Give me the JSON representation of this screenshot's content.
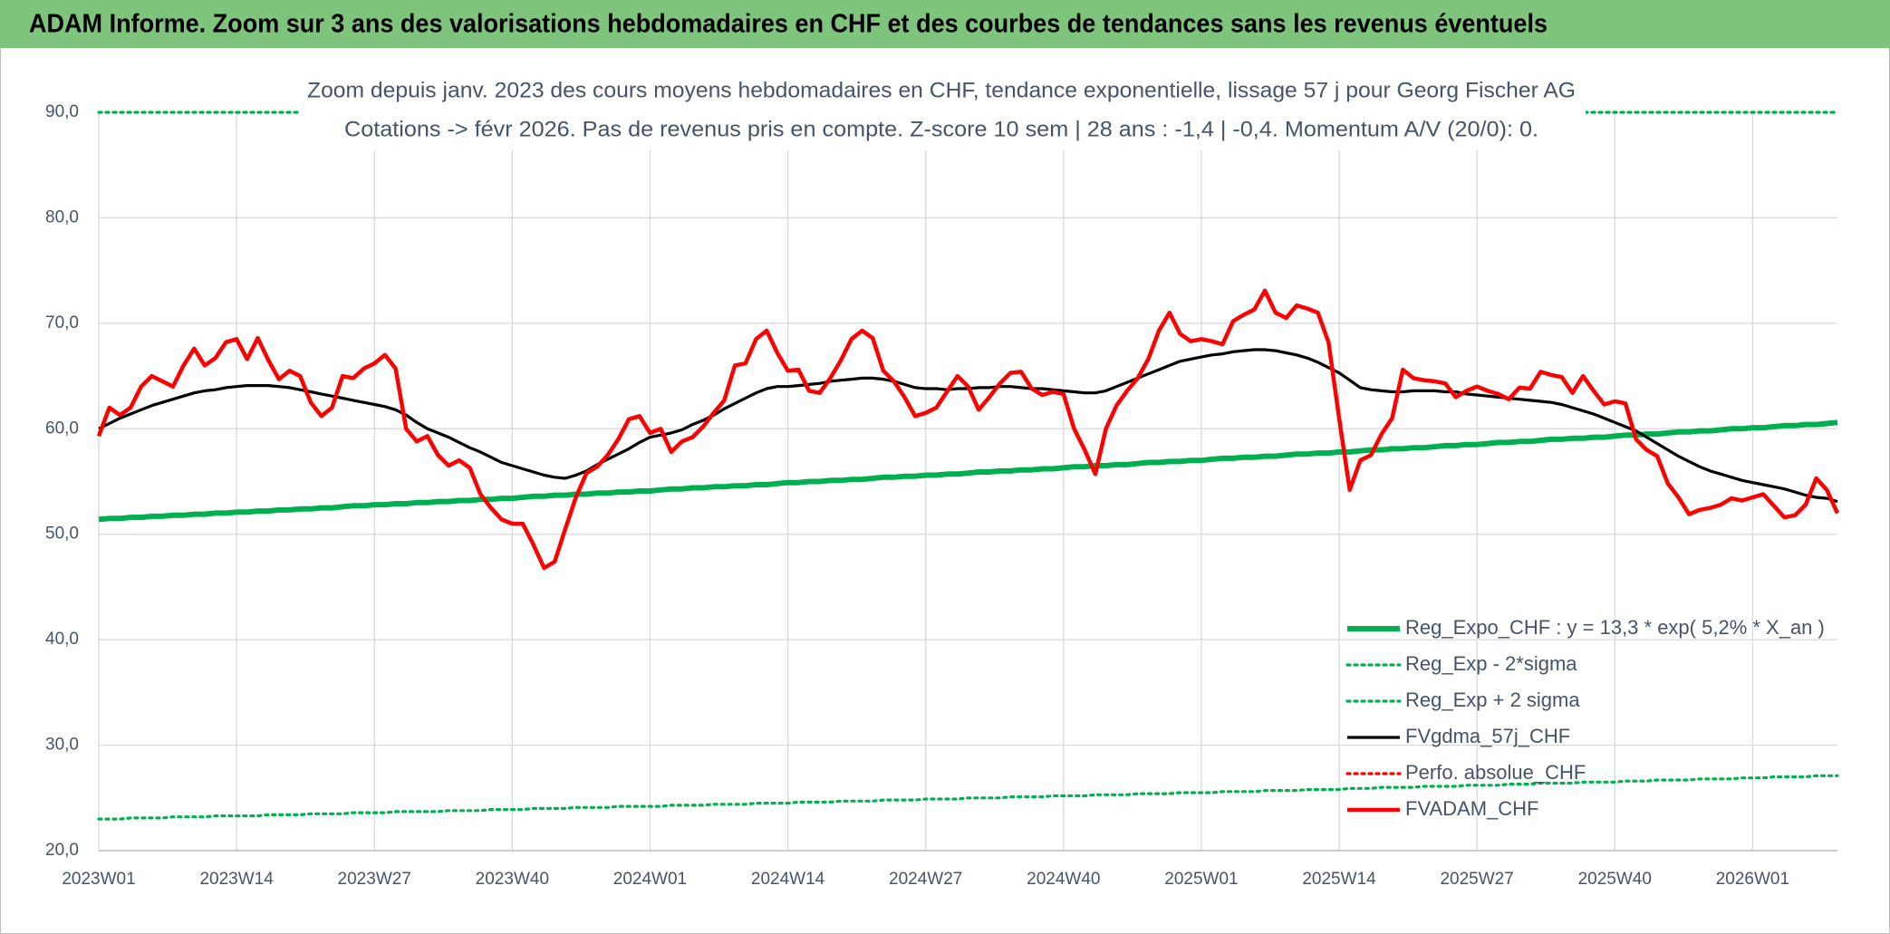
{
  "header": {
    "title": "ADAM Informe. Zoom sur 3 ans des valorisations hebdomadaires en CHF et des courbes de tendances sans les revenus éventuels"
  },
  "chart_data": {
    "type": "line",
    "title": "Zoom depuis janv. 2023 des cours moyens hebdomadaires en CHF, tendance exponentielle, lissage 57 j pour Georg Fischer AG",
    "subtitle": "Cotations -> févr 2026. Pas de revenus pris en compte. Z-score 10 sem | 28 ans : -1,4 | -0,4. Momentum A/V (20/0): 0.",
    "categories": [
      "2023W01",
      null,
      null,
      null,
      null,
      null,
      null,
      null,
      null,
      null,
      null,
      null,
      null,
      "2023W14",
      null,
      null,
      null,
      null,
      null,
      null,
      null,
      null,
      null,
      null,
      null,
      null,
      "2023W27",
      null,
      null,
      null,
      null,
      null,
      null,
      null,
      null,
      null,
      null,
      null,
      null,
      "2023W40",
      null,
      null,
      null,
      null,
      null,
      null,
      null,
      null,
      null,
      null,
      null,
      null,
      "2024W01",
      null,
      null,
      null,
      null,
      null,
      null,
      null,
      null,
      null,
      null,
      null,
      null,
      "2024W14",
      null,
      null,
      null,
      null,
      null,
      null,
      null,
      null,
      null,
      null,
      null,
      null,
      "2024W27",
      null,
      null,
      null,
      null,
      null,
      null,
      null,
      null,
      null,
      null,
      null,
      null,
      "2024W40",
      null,
      null,
      null,
      null,
      null,
      null,
      null,
      null,
      null,
      null,
      null,
      null,
      "2025W01",
      null,
      null,
      null,
      null,
      null,
      null,
      null,
      null,
      null,
      null,
      null,
      null,
      "2025W14",
      null,
      null,
      null,
      null,
      null,
      null,
      null,
      null,
      null,
      null,
      null,
      null,
      "2025W27",
      null,
      null,
      null,
      null,
      null,
      null,
      null,
      null,
      null,
      null,
      null,
      null,
      "2025W40",
      null,
      null,
      null,
      null,
      null,
      null,
      null,
      null,
      null,
      null,
      null,
      null,
      "2026W01",
      null,
      null,
      null,
      null,
      null,
      null,
      null,
      null
    ],
    "ylim": [
      20,
      90
    ],
    "yticks": [
      {
        "value": 20,
        "label": "20,0"
      },
      {
        "value": 30,
        "label": "30,0"
      },
      {
        "value": 40,
        "label": "40,0"
      },
      {
        "value": 50,
        "label": "50,0"
      },
      {
        "value": 60,
        "label": "60,0"
      },
      {
        "value": 70,
        "label": "70,0"
      },
      {
        "value": 80,
        "label": "80,0"
      },
      {
        "value": 90,
        "label": "90,0"
      }
    ],
    "grid": true,
    "legend": "bottom-right",
    "series": [
      {
        "name": "Reg_Expo_CHF : y = 13,3 * exp( 5,2% *  X_an )",
        "color": "#00b050",
        "style": "thick",
        "values": [
          51.4,
          51.5,
          51.5,
          51.6,
          51.6,
          51.7,
          51.7,
          51.8,
          51.8,
          51.9,
          51.9,
          52.0,
          52.0,
          52.1,
          52.1,
          52.2,
          52.2,
          52.3,
          52.3,
          52.4,
          52.4,
          52.5,
          52.5,
          52.6,
          52.7,
          52.7,
          52.8,
          52.8,
          52.9,
          52.9,
          53.0,
          53.0,
          53.1,
          53.1,
          53.2,
          53.2,
          53.3,
          53.3,
          53.4,
          53.4,
          53.5,
          53.6,
          53.6,
          53.7,
          53.7,
          53.8,
          53.8,
          53.9,
          53.9,
          54.0,
          54.0,
          54.1,
          54.1,
          54.2,
          54.3,
          54.3,
          54.4,
          54.4,
          54.5,
          54.5,
          54.6,
          54.6,
          54.7,
          54.7,
          54.8,
          54.9,
          54.9,
          55.0,
          55.0,
          55.1,
          55.1,
          55.2,
          55.2,
          55.3,
          55.4,
          55.4,
          55.5,
          55.5,
          55.6,
          55.6,
          55.7,
          55.7,
          55.8,
          55.9,
          55.9,
          56.0,
          56.0,
          56.1,
          56.1,
          56.2,
          56.2,
          56.3,
          56.4,
          56.4,
          56.5,
          56.5,
          56.6,
          56.6,
          56.7,
          56.8,
          56.8,
          56.9,
          56.9,
          57.0,
          57.0,
          57.1,
          57.2,
          57.2,
          57.3,
          57.3,
          57.4,
          57.4,
          57.5,
          57.6,
          57.6,
          57.7,
          57.7,
          57.8,
          57.8,
          57.9,
          58.0,
          58.0,
          58.1,
          58.1,
          58.2,
          58.2,
          58.3,
          58.4,
          58.4,
          58.5,
          58.5,
          58.6,
          58.7,
          58.7,
          58.8,
          58.8,
          58.9,
          59.0,
          59.0,
          59.1,
          59.1,
          59.2,
          59.2,
          59.3,
          59.4,
          59.4,
          59.5,
          59.5,
          59.6,
          59.7,
          59.7,
          59.8,
          59.8,
          59.9,
          60.0,
          60.0,
          60.1,
          60.1,
          60.2,
          60.3,
          60.3,
          60.4,
          60.4,
          60.5,
          60.6
        ]
      },
      {
        "name": "Reg_Exp - 2*sigma",
        "color": "#00b050",
        "style": "dotted",
        "values": [
          23.0,
          23.0,
          23.0,
          23.1,
          23.1,
          23.1,
          23.1,
          23.2,
          23.2,
          23.2,
          23.2,
          23.3,
          23.3,
          23.3,
          23.3,
          23.3,
          23.4,
          23.4,
          23.4,
          23.4,
          23.5,
          23.5,
          23.5,
          23.5,
          23.6,
          23.6,
          23.6,
          23.6,
          23.7,
          23.7,
          23.7,
          23.7,
          23.7,
          23.8,
          23.8,
          23.8,
          23.8,
          23.9,
          23.9,
          23.9,
          23.9,
          24.0,
          24.0,
          24.0,
          24.0,
          24.1,
          24.1,
          24.1,
          24.1,
          24.2,
          24.2,
          24.2,
          24.2,
          24.2,
          24.3,
          24.3,
          24.3,
          24.3,
          24.4,
          24.4,
          24.4,
          24.4,
          24.5,
          24.5,
          24.5,
          24.5,
          24.6,
          24.6,
          24.6,
          24.6,
          24.7,
          24.7,
          24.7,
          24.7,
          24.8,
          24.8,
          24.8,
          24.8,
          24.9,
          24.9,
          24.9,
          24.9,
          25.0,
          25.0,
          25.0,
          25.0,
          25.1,
          25.1,
          25.1,
          25.1,
          25.2,
          25.2,
          25.2,
          25.2,
          25.3,
          25.3,
          25.3,
          25.3,
          25.4,
          25.4,
          25.4,
          25.4,
          25.5,
          25.5,
          25.5,
          25.5,
          25.6,
          25.6,
          25.6,
          25.6,
          25.7,
          25.7,
          25.7,
          25.7,
          25.8,
          25.8,
          25.8,
          25.8,
          25.9,
          25.9,
          25.9,
          26.0,
          26.0,
          26.0,
          26.0,
          26.1,
          26.1,
          26.1,
          26.1,
          26.2,
          26.2,
          26.2,
          26.2,
          26.3,
          26.3,
          26.3,
          26.4,
          26.4,
          26.4,
          26.4,
          26.5,
          26.5,
          26.5,
          26.5,
          26.6,
          26.6,
          26.6,
          26.7,
          26.7,
          26.7,
          26.7,
          26.8,
          26.8,
          26.8,
          26.8,
          26.9,
          26.9,
          26.9,
          27.0,
          27.0,
          27.0,
          27.0,
          27.1,
          27.1,
          27.1
        ]
      },
      {
        "name": "Reg_Exp + 2 sigma",
        "color": "#00b050",
        "style": "dotted",
        "values": [
          90,
          90,
          90,
          90,
          90,
          90,
          90,
          90,
          90,
          90,
          90,
          90,
          90,
          90,
          90,
          90,
          90,
          90,
          90,
          90,
          90,
          90,
          90,
          90,
          90,
          90,
          90,
          90,
          90,
          90,
          90,
          90,
          90,
          90,
          90,
          90,
          90,
          90,
          90,
          90,
          90,
          90,
          90,
          90,
          90,
          90,
          90,
          90,
          90,
          90,
          90,
          90,
          90,
          90,
          90,
          90,
          90,
          90,
          90,
          90,
          90,
          90,
          90,
          90,
          90,
          90,
          90,
          90,
          90,
          90,
          90,
          90,
          90,
          90,
          90,
          90,
          90,
          90,
          90,
          90,
          90,
          90,
          90,
          90,
          90,
          90,
          90,
          90,
          90,
          90,
          90,
          90,
          90,
          90,
          90,
          90,
          90,
          90,
          90,
          90,
          90,
          90,
          90,
          90,
          90,
          90,
          90,
          90,
          90,
          90,
          90,
          90,
          90,
          90,
          90,
          90,
          90,
          90,
          90,
          90,
          90,
          90,
          90,
          90,
          90,
          90,
          90,
          90,
          90,
          90,
          90,
          90,
          90,
          90,
          90,
          90,
          90,
          90,
          90,
          90,
          90,
          90,
          90,
          90,
          90,
          90,
          90,
          90,
          90,
          90,
          90,
          90,
          90,
          90,
          90,
          90,
          90,
          90,
          90,
          90,
          90,
          90,
          90,
          90,
          90
        ]
      },
      {
        "name": "FVgdma_57j_CHF",
        "color": "#000000",
        "style": "solid",
        "values": [
          60.0,
          60.5,
          61.0,
          61.4,
          61.8,
          62.2,
          62.5,
          62.8,
          63.1,
          63.4,
          63.6,
          63.7,
          63.9,
          64.0,
          64.1,
          64.1,
          64.1,
          64.0,
          63.9,
          63.7,
          63.5,
          63.3,
          63.1,
          62.9,
          62.7,
          62.5,
          62.3,
          62.1,
          61.8,
          61.3,
          60.6,
          60.0,
          59.6,
          59.2,
          58.7,
          58.2,
          57.8,
          57.3,
          56.8,
          56.5,
          56.2,
          55.9,
          55.6,
          55.4,
          55.3,
          55.6,
          56.0,
          56.6,
          57.1,
          57.6,
          58.1,
          58.7,
          59.2,
          59.4,
          59.6,
          59.9,
          60.4,
          60.8,
          61.3,
          61.9,
          62.4,
          62.9,
          63.4,
          63.8,
          64.0,
          64.0,
          64.1,
          64.2,
          64.3,
          64.5,
          64.6,
          64.7,
          64.8,
          64.8,
          64.7,
          64.5,
          64.2,
          63.9,
          63.8,
          63.8,
          63.7,
          63.8,
          63.8,
          63.9,
          63.9,
          64.0,
          64.0,
          63.9,
          63.8,
          63.8,
          63.7,
          63.6,
          63.5,
          63.4,
          63.4,
          63.6,
          64.0,
          64.4,
          64.8,
          65.2,
          65.6,
          66.0,
          66.4,
          66.6,
          66.8,
          67.0,
          67.1,
          67.3,
          67.4,
          67.5,
          67.5,
          67.4,
          67.2,
          67.0,
          66.7,
          66.3,
          65.8,
          65.3,
          64.6,
          63.9,
          63.7,
          63.6,
          63.5,
          63.5,
          63.6,
          63.6,
          63.6,
          63.5,
          63.5,
          63.3,
          63.2,
          63.1,
          63.0,
          62.9,
          62.8,
          62.7,
          62.6,
          62.5,
          62.3,
          62.0,
          61.7,
          61.4,
          61.0,
          60.6,
          60.2,
          59.8,
          59.2,
          58.6,
          58.0,
          57.4,
          56.9,
          56.4,
          56.0,
          55.7,
          55.4,
          55.1,
          54.9,
          54.7,
          54.5,
          54.3,
          54.0,
          53.7,
          53.5,
          53.4,
          53.1
        ]
      },
      {
        "name": "Perfo. absolue_CHF",
        "color": "#ff0000",
        "style": "dotted",
        "values": [
          null,
          null,
          null,
          null,
          null,
          null,
          null,
          null,
          null,
          null,
          null,
          null,
          null,
          null,
          null,
          null,
          null,
          null,
          null,
          null,
          null,
          null,
          null,
          null,
          null,
          null,
          null,
          null,
          null,
          null,
          null,
          null,
          null,
          null,
          null,
          null,
          null,
          null,
          null,
          null,
          null,
          null,
          null,
          null,
          null,
          null,
          null,
          null,
          null,
          null,
          null,
          null,
          null,
          null,
          null,
          null,
          null,
          null,
          null,
          null,
          null,
          null,
          null,
          null,
          null,
          null,
          null,
          null,
          null,
          null,
          null,
          null,
          null,
          null,
          null,
          null,
          null,
          null,
          null,
          null,
          null,
          null,
          null,
          null,
          null,
          null,
          null,
          null,
          null,
          null,
          null,
          null,
          null,
          null,
          null,
          null,
          null,
          null,
          null,
          null,
          null,
          null,
          null,
          null,
          null,
          null,
          null,
          null,
          null,
          null,
          null,
          null,
          null,
          null,
          null,
          null,
          null,
          null,
          null,
          null,
          null,
          null,
          null,
          null,
          null,
          null,
          null,
          null,
          null,
          null,
          null,
          null,
          null,
          null,
          null,
          null,
          null,
          null,
          null,
          null,
          null,
          null,
          null,
          null,
          null,
          null,
          null,
          null,
          null,
          null,
          null,
          null,
          null,
          null,
          null,
          null,
          null,
          null,
          null,
          null,
          null,
          null,
          null,
          null,
          null
        ]
      },
      {
        "name": "FVADAM_CHF",
        "color": "#ff0000",
        "style": "thick-red",
        "values": [
          59.3,
          62.0,
          61.3,
          62.0,
          64.0,
          65.0,
          64.5,
          64.0,
          66.0,
          67.6,
          66.0,
          66.7,
          68.2,
          68.5,
          66.6,
          68.6,
          66.5,
          64.7,
          65.5,
          65.0,
          62.5,
          61.2,
          62.0,
          65.0,
          64.8,
          65.7,
          66.2,
          67.0,
          65.7,
          60.0,
          58.8,
          59.3,
          57.5,
          56.5,
          57.0,
          56.3,
          53.8,
          52.5,
          51.4,
          51.0,
          51.0,
          49.0,
          46.8,
          47.4,
          50.5,
          53.5,
          55.8,
          56.4,
          57.5,
          59.0,
          60.9,
          61.2,
          59.6,
          60.0,
          57.8,
          58.8,
          59.2,
          60.2,
          61.5,
          62.7,
          66.0,
          66.2,
          68.5,
          69.3,
          67.2,
          65.5,
          65.6,
          63.6,
          63.4,
          64.8,
          66.5,
          68.5,
          69.3,
          68.6,
          65.5,
          64.5,
          63.0,
          61.2,
          61.5,
          62.0,
          63.5,
          65.0,
          64.0,
          61.8,
          63.0,
          64.3,
          65.3,
          65.4,
          63.8,
          63.2,
          63.5,
          63.3,
          60.0,
          58.0,
          55.7,
          60.0,
          62.2,
          63.6,
          64.8,
          66.6,
          69.3,
          71.0,
          69.0,
          68.3,
          68.5,
          68.3,
          68.0,
          70.2,
          70.8,
          71.3,
          73.1,
          71.0,
          70.5,
          71.7,
          71.4,
          71.0,
          68.2,
          61.0,
          54.2,
          57.0,
          57.5,
          59.5,
          61.0,
          65.6,
          64.8,
          64.6,
          64.5,
          64.3,
          63.0,
          63.6,
          64.0,
          63.6,
          63.3,
          62.8,
          63.9,
          63.8,
          65.4,
          65.1,
          64.9,
          63.4,
          65.0,
          63.6,
          62.3,
          62.6,
          62.4,
          59.0,
          58.0,
          57.4,
          54.8,
          53.5,
          51.9,
          52.3,
          52.5,
          52.8,
          53.4,
          53.2,
          53.5,
          53.8,
          52.7,
          51.6,
          51.8,
          52.8,
          55.3,
          54.2,
          52.0
        ]
      }
    ]
  }
}
